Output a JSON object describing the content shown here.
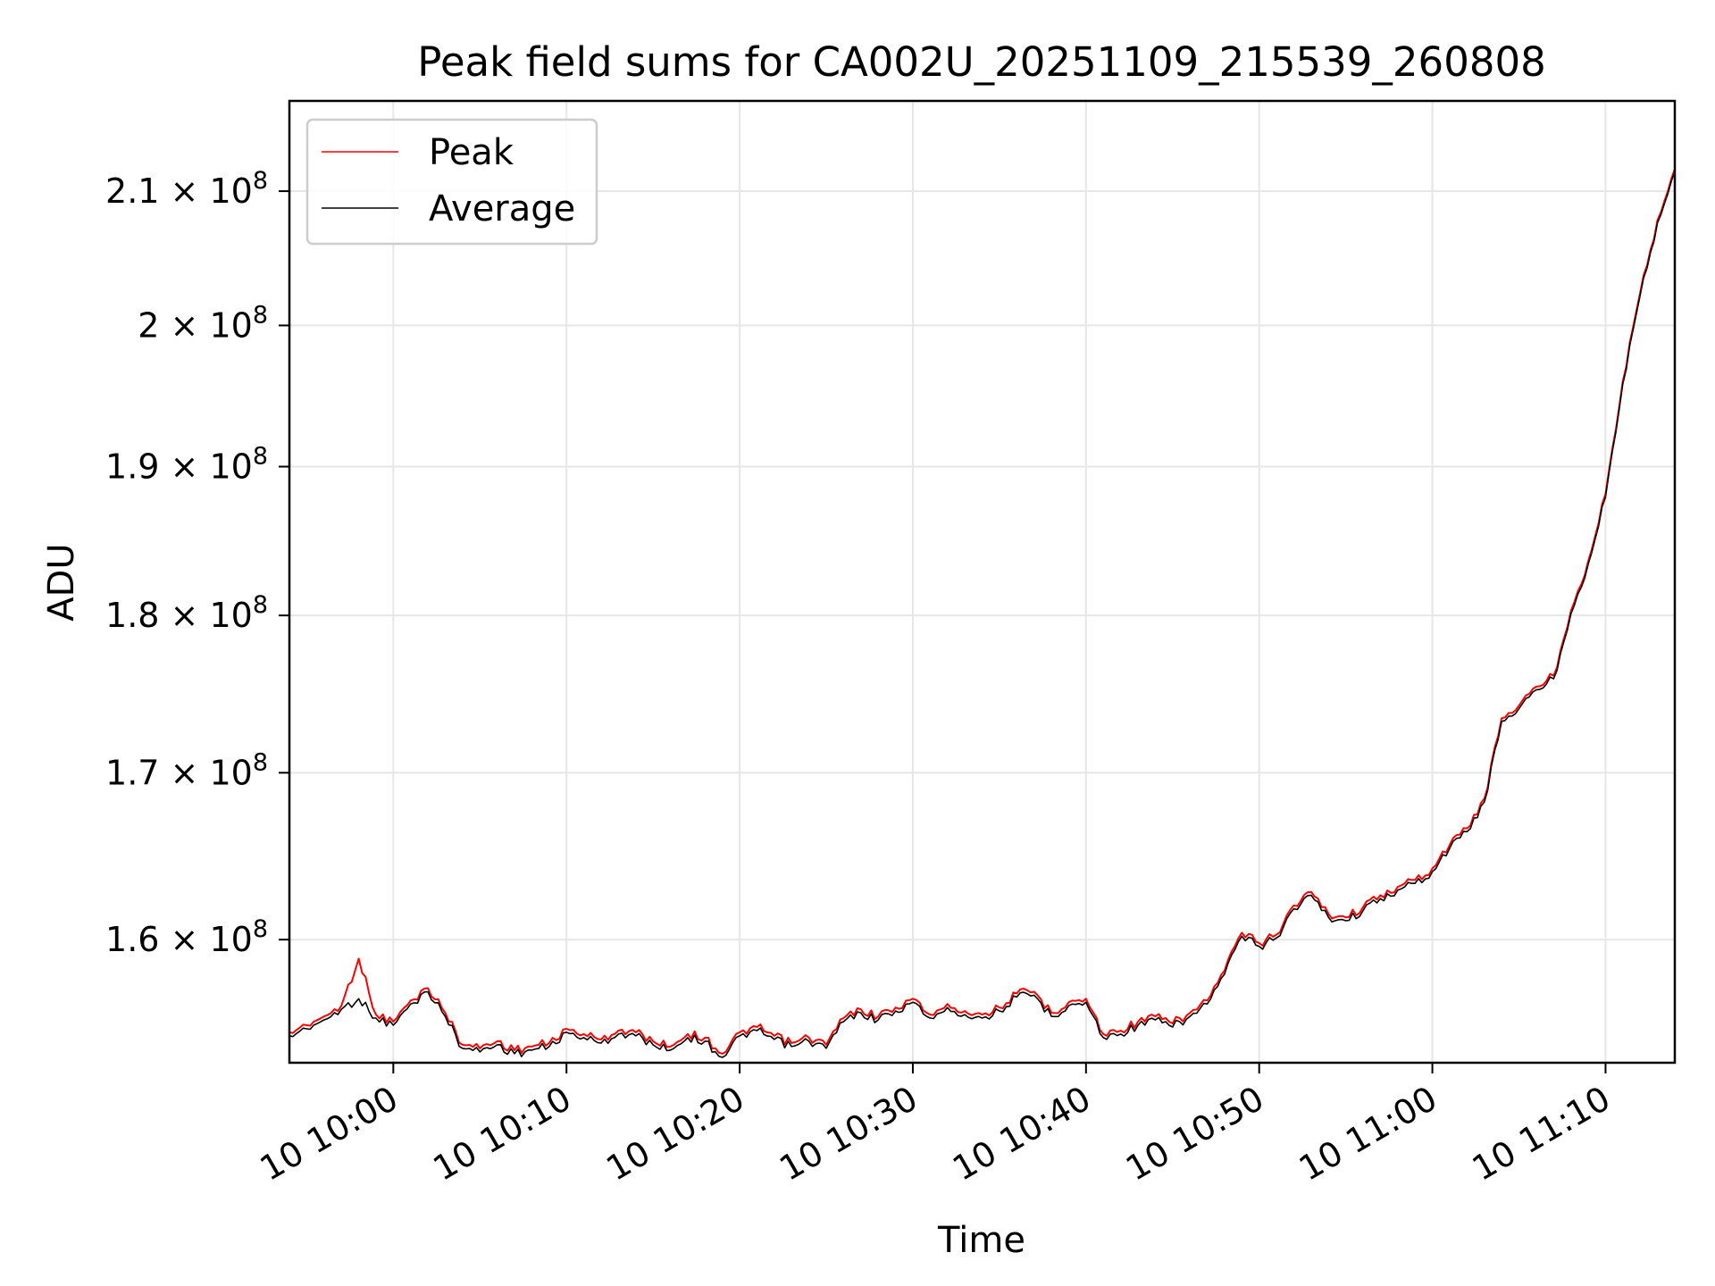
{
  "chart_data": {
    "type": "line",
    "title": "Peak field sums for CA002U_20251109_215539_260808",
    "xlabel": "Time",
    "ylabel": "ADU",
    "y_scale": "log",
    "ylim": [
      153000000,
      217000000
    ],
    "xlim": [
      "10 09:54",
      "11:14"
    ],
    "x_ticks": [
      {
        "t": "10:00",
        "label": "10 10:00"
      },
      {
        "t": "10:10",
        "label": "10 10:10"
      },
      {
        "t": "10:20",
        "label": "10 10:20"
      },
      {
        "t": "10:30",
        "label": "10 10:30"
      },
      {
        "t": "10:40",
        "label": "10 10:40"
      },
      {
        "t": "10:50",
        "label": "10 10:50"
      },
      {
        "t": "11:00",
        "label": "10 11:00"
      },
      {
        "t": "11:10",
        "label": "10 11:10"
      }
    ],
    "y_ticks": [
      {
        "value": 160000000,
        "mantissa": "1.6",
        "exponent": "8"
      },
      {
        "value": 170000000,
        "mantissa": "1.7",
        "exponent": "8"
      },
      {
        "value": 180000000,
        "mantissa": "1.8",
        "exponent": "8"
      },
      {
        "value": 190000000,
        "mantissa": "1.9",
        "exponent": "8"
      },
      {
        "value": 200000000,
        "mantissa": "2",
        "exponent": "8"
      },
      {
        "value": 210000000,
        "mantissa": "2.1",
        "exponent": "8"
      }
    ],
    "grid": true,
    "legend_position": "upper-left",
    "series": [
      {
        "name": "Peak",
        "color": "#ff0000",
        "points": [
          [
            "09:54",
            154.7
          ],
          [
            "09:55",
            155.1
          ],
          [
            "09:56",
            155.6
          ],
          [
            "09:57",
            156.2
          ],
          [
            "09:58",
            158.9
          ],
          [
            "09:59",
            155.7
          ],
          [
            "10:00",
            155.3
          ],
          [
            "10:01",
            156.5
          ],
          [
            "10:02",
            157.2
          ],
          [
            "10:03",
            155.8
          ],
          [
            "10:04",
            154.0
          ],
          [
            "10:05",
            153.8
          ],
          [
            "10:06",
            154.2
          ],
          [
            "10:07",
            153.7
          ],
          [
            "10:08",
            153.9
          ],
          [
            "10:09",
            154.1
          ],
          [
            "10:10",
            154.9
          ],
          [
            "10:11",
            154.6
          ],
          [
            "10:12",
            154.3
          ],
          [
            "10:13",
            154.8
          ],
          [
            "10:14",
            154.7
          ],
          [
            "10:15",
            154.2
          ],
          [
            "10:16",
            153.9
          ],
          [
            "10:17",
            154.6
          ],
          [
            "10:18",
            154.4
          ],
          [
            "10:19",
            153.5
          ],
          [
            "10:20",
            154.7
          ],
          [
            "10:21",
            155.0
          ],
          [
            "10:22",
            154.5
          ],
          [
            "10:23",
            154.1
          ],
          [
            "10:24",
            154.4
          ],
          [
            "10:25",
            154.0
          ],
          [
            "10:26",
            155.5
          ],
          [
            "10:27",
            156.0
          ],
          [
            "10:28",
            155.6
          ],
          [
            "10:29",
            156.1
          ],
          [
            "10:30",
            156.6
          ],
          [
            "10:31",
            155.7
          ],
          [
            "10:32",
            156.3
          ],
          [
            "10:33",
            155.9
          ],
          [
            "10:34",
            155.7
          ],
          [
            "10:35",
            156.1
          ],
          [
            "10:36",
            156.9
          ],
          [
            "10:37",
            157.0
          ],
          [
            "10:38",
            155.8
          ],
          [
            "10:39",
            156.4
          ],
          [
            "10:40",
            156.6
          ],
          [
            "10:41",
            154.6
          ],
          [
            "10:42",
            154.8
          ],
          [
            "10:43",
            155.3
          ],
          [
            "10:44",
            155.6
          ],
          [
            "10:45",
            155.2
          ],
          [
            "10:46",
            155.8
          ],
          [
            "10:47",
            156.5
          ],
          [
            "10:48",
            158.2
          ],
          [
            "10:49",
            160.4
          ],
          [
            "10:50",
            159.8
          ],
          [
            "10:51",
            160.3
          ],
          [
            "10:52",
            162.0
          ],
          [
            "10:53",
            162.8
          ],
          [
            "10:54",
            161.5
          ],
          [
            "10:55",
            161.3
          ],
          [
            "10:56",
            161.9
          ],
          [
            "10:57",
            162.6
          ],
          [
            "10:58",
            163.1
          ],
          [
            "10:59",
            163.5
          ],
          [
            "11:00",
            164.2
          ],
          [
            "11:01",
            165.6
          ],
          [
            "11:02",
            166.6
          ],
          [
            "11:03",
            168.4
          ],
          [
            "11:04",
            173.4
          ],
          [
            "11:05",
            174.2
          ],
          [
            "11:06",
            175.4
          ],
          [
            "11:07",
            176.1
          ],
          [
            "11:08",
            180.3
          ],
          [
            "11:09",
            183.6
          ],
          [
            "11:10",
            188.1
          ],
          [
            "11:11",
            196.0
          ],
          [
            "11:12",
            202.4
          ],
          [
            "11:13",
            207.8
          ],
          [
            "11:14",
            211.7
          ]
        ]
      },
      {
        "name": "Average",
        "color": "#000000",
        "points": [
          [
            "09:54",
            154.5
          ],
          [
            "09:55",
            154.9
          ],
          [
            "09:56",
            155.4
          ],
          [
            "09:57",
            156.0
          ],
          [
            "09:58",
            156.6
          ],
          [
            "09:59",
            155.5
          ],
          [
            "10:00",
            155.1
          ],
          [
            "10:01",
            156.3
          ],
          [
            "10:02",
            157.0
          ],
          [
            "10:03",
            155.6
          ],
          [
            "10:04",
            153.8
          ],
          [
            "10:05",
            153.6
          ],
          [
            "10:06",
            154.0
          ],
          [
            "10:07",
            153.5
          ],
          [
            "10:08",
            153.7
          ],
          [
            "10:09",
            153.9
          ],
          [
            "10:10",
            154.7
          ],
          [
            "10:11",
            154.4
          ],
          [
            "10:12",
            154.1
          ],
          [
            "10:13",
            154.6
          ],
          [
            "10:14",
            154.5
          ],
          [
            "10:15",
            154.0
          ],
          [
            "10:16",
            153.7
          ],
          [
            "10:17",
            154.4
          ],
          [
            "10:18",
            154.2
          ],
          [
            "10:19",
            153.3
          ],
          [
            "10:20",
            154.5
          ],
          [
            "10:21",
            154.8
          ],
          [
            "10:22",
            154.3
          ],
          [
            "10:23",
            153.9
          ],
          [
            "10:24",
            154.2
          ],
          [
            "10:25",
            153.8
          ],
          [
            "10:26",
            155.3
          ],
          [
            "10:27",
            155.8
          ],
          [
            "10:28",
            155.4
          ],
          [
            "10:29",
            155.9
          ],
          [
            "10:30",
            156.4
          ],
          [
            "10:31",
            155.5
          ],
          [
            "10:32",
            156.1
          ],
          [
            "10:33",
            155.7
          ],
          [
            "10:34",
            155.5
          ],
          [
            "10:35",
            155.9
          ],
          [
            "10:36",
            156.7
          ],
          [
            "10:37",
            156.8
          ],
          [
            "10:38",
            155.6
          ],
          [
            "10:39",
            156.2
          ],
          [
            "10:40",
            156.4
          ],
          [
            "10:41",
            154.4
          ],
          [
            "10:42",
            154.6
          ],
          [
            "10:43",
            155.1
          ],
          [
            "10:44",
            155.4
          ],
          [
            "10:45",
            155.0
          ],
          [
            "10:46",
            155.6
          ],
          [
            "10:47",
            156.3
          ],
          [
            "10:48",
            158.0
          ],
          [
            "10:49",
            160.2
          ],
          [
            "10:50",
            159.6
          ],
          [
            "10:51",
            160.1
          ],
          [
            "10:52",
            161.8
          ],
          [
            "10:53",
            162.6
          ],
          [
            "10:54",
            161.3
          ],
          [
            "10:55",
            161.1
          ],
          [
            "10:56",
            161.7
          ],
          [
            "10:57",
            162.4
          ],
          [
            "10:58",
            162.9
          ],
          [
            "10:59",
            163.3
          ],
          [
            "11:00",
            164.0
          ],
          [
            "11:01",
            165.4
          ],
          [
            "11:02",
            166.4
          ],
          [
            "11:03",
            168.2
          ],
          [
            "11:04",
            173.2
          ],
          [
            "11:05",
            174.0
          ],
          [
            "11:06",
            175.2
          ],
          [
            "11:07",
            175.9
          ],
          [
            "11:08",
            180.1
          ],
          [
            "11:09",
            183.4
          ],
          [
            "11:10",
            187.9
          ],
          [
            "11:11",
            195.8
          ],
          [
            "11:12",
            202.2
          ],
          [
            "11:13",
            207.6
          ],
          [
            "11:14",
            211.5
          ]
        ]
      }
    ]
  }
}
